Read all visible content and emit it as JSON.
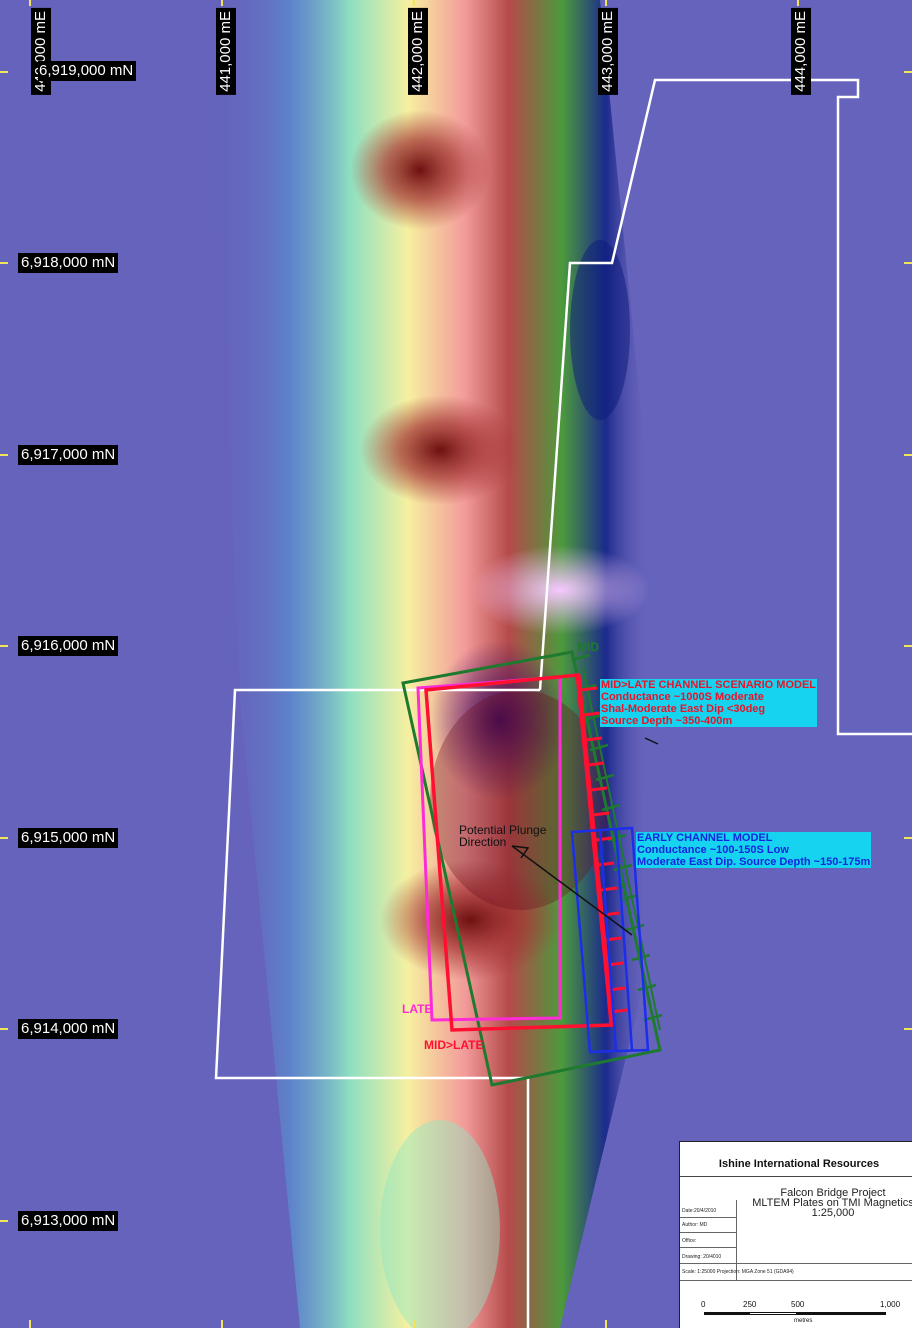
{
  "grid": {
    "easting_labels": [
      "440,000 mE",
      "441,000 mE",
      "442,000 mE",
      "443,000 mE",
      "444,000 mE"
    ],
    "northing_labels": [
      "6,919,000 mN",
      "6,918,000 mN",
      "6,917,000 mN",
      "6,916,000 mN",
      "6,915,000 mN",
      "6,914,000 mN",
      "6,913,000 mN"
    ]
  },
  "annotations": {
    "mid_late_model": {
      "lines": [
        "MID>LATE CHANNEL SCENARIO MODEL",
        "Conductance ~1000S Moderate",
        "Shal-Moderate East Dip <30deg",
        "Source Depth ~350-400m"
      ],
      "color": "#e8142a"
    },
    "early_model": {
      "lines": [
        "EARLY CHANNEL MODEL",
        "Conductance ~100-150S Low",
        "Moderate East Dip. Source Depth ~150-175m"
      ],
      "color": "#1426e0"
    },
    "plunge": [
      "Potential Plunge",
      "Direction"
    ],
    "tag_mid": "MID",
    "tag_late": "LATE",
    "tag_mid_late": "MID>LATE"
  },
  "colors": {
    "mid": "#1e7a2e",
    "late": "#ff2bd6",
    "mid_late": "#ff1030",
    "early": "#1c2ee8",
    "tenement": "#ffffff"
  },
  "title_block": {
    "company": "Ishine International Resources",
    "project_lines": [
      "Falcon Bridge Project",
      "MLTEM Plates on TMI Magnetics",
      "1:25,000"
    ],
    "date": "Date:20/4/2010",
    "author": "Author: MD",
    "office": "Office:",
    "drawing": "Drawing: 20/4010",
    "scale_proj": "Scale: 1:25000     Projection: MGA Zone 51 (GDA94)",
    "scale_ticks": [
      "0",
      "250",
      "500",
      "1,000"
    ],
    "scale_units": "metres"
  }
}
